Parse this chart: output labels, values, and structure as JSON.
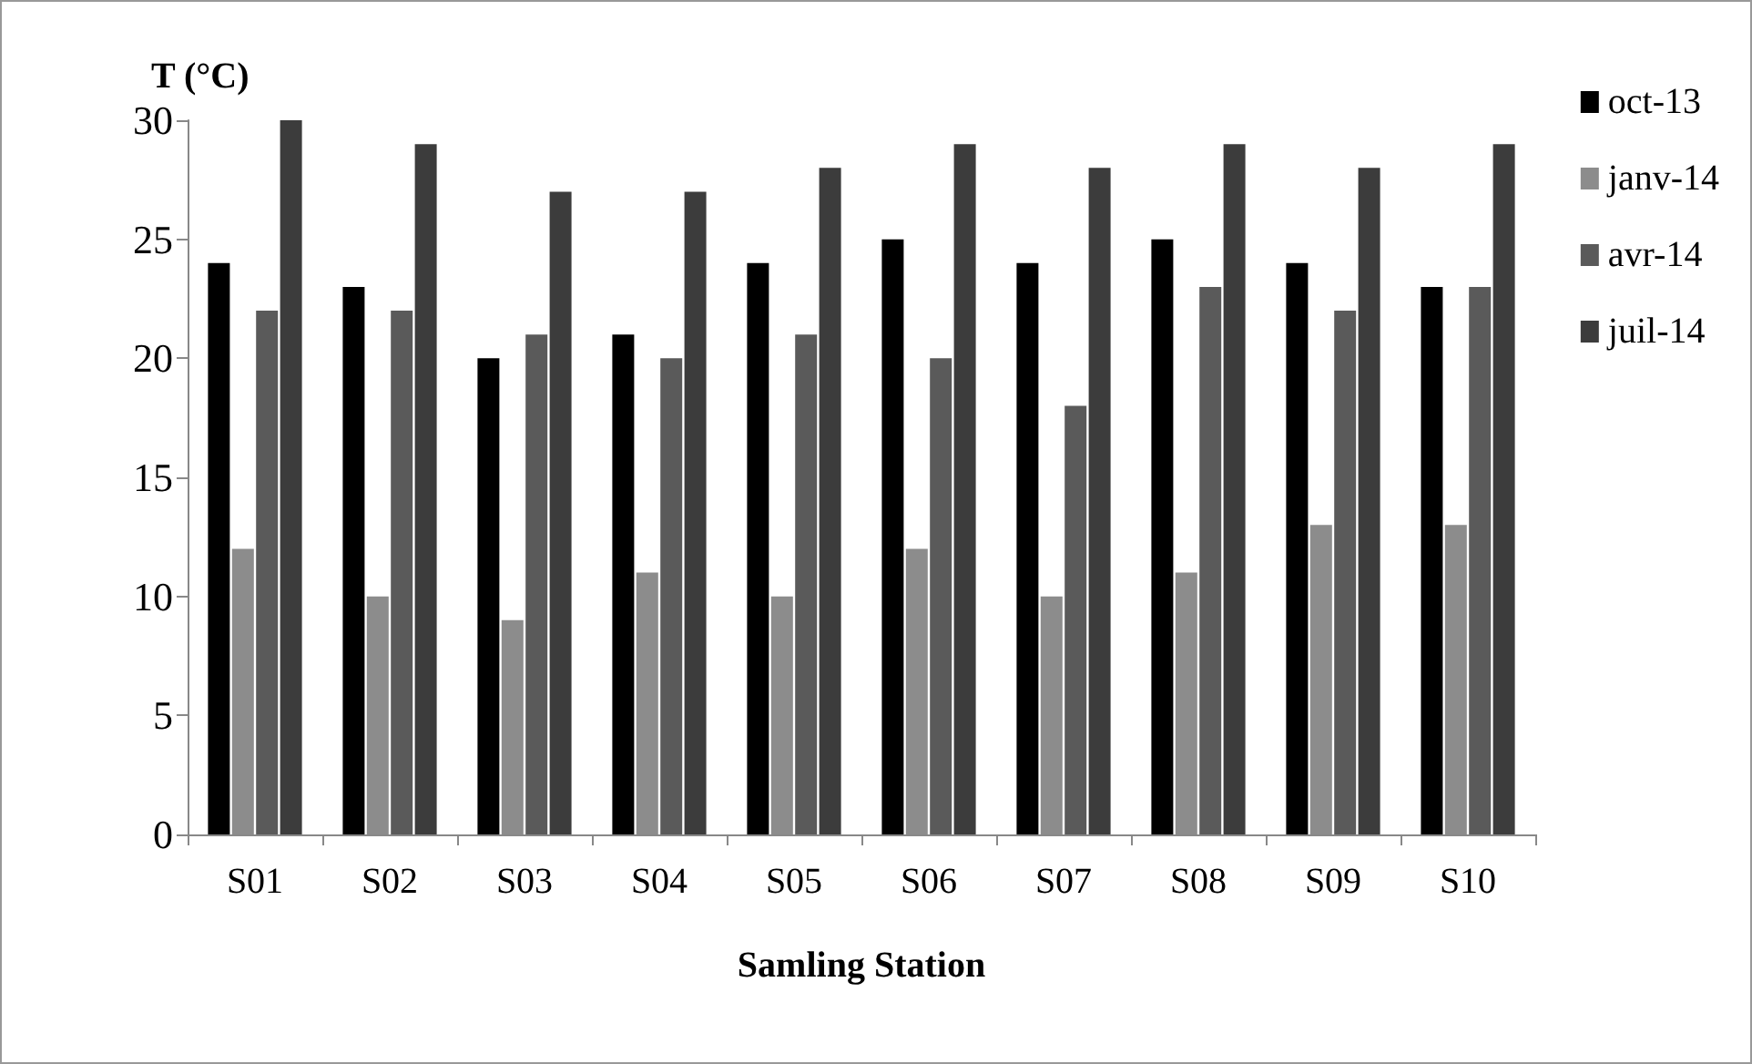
{
  "chart_data": {
    "type": "bar",
    "xlabel": "Samling Station",
    "ylabel": "T (°C)",
    "categories": [
      "S01",
      "S02",
      "S03",
      "S04",
      "S05",
      "S06",
      "S07",
      "S08",
      "S09",
      "S10"
    ],
    "series": [
      {
        "name": "oct-13",
        "color": "#000000",
        "values": [
          24,
          23,
          20,
          21,
          24,
          25,
          24,
          25,
          24,
          23
        ]
      },
      {
        "name": "janv-14",
        "color": "#8c8c8c",
        "values": [
          12,
          10,
          9,
          11,
          10,
          12,
          10,
          11,
          13,
          13
        ]
      },
      {
        "name": "avr-14",
        "color": "#5a5a5a",
        "values": [
          22,
          22,
          21,
          20,
          21,
          20,
          18,
          23,
          22,
          23
        ]
      },
      {
        "name": "juil-14",
        "color": "#3c3c3c",
        "values": [
          30,
          29,
          27,
          27,
          28,
          29,
          28,
          29,
          28,
          29
        ]
      }
    ],
    "ylim": [
      0,
      30
    ],
    "yticks": [
      0,
      5,
      10,
      15,
      20,
      25,
      30
    ],
    "grid": false,
    "legend": "right"
  }
}
